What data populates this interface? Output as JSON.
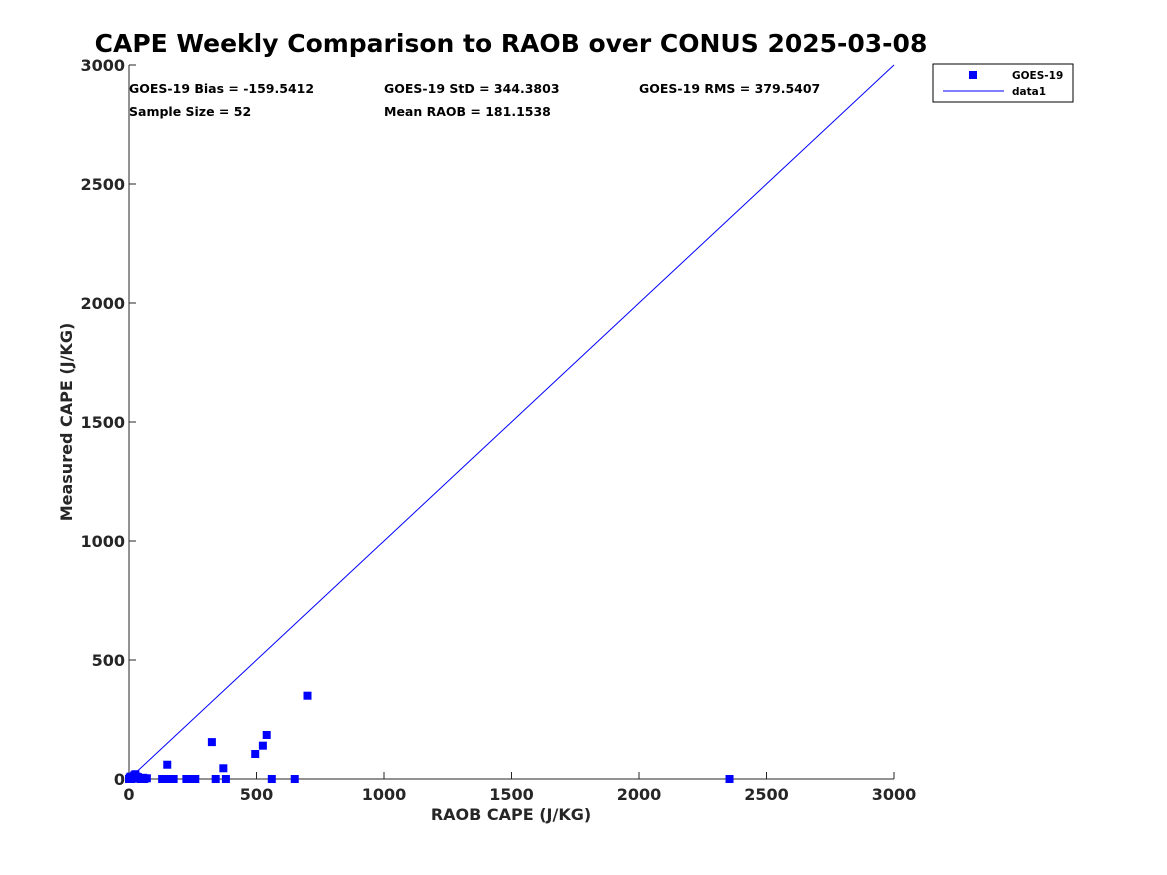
{
  "chart_data": {
    "type": "scatter",
    "title": "CAPE Weekly Comparison to RAOB over CONUS 2025-03-08",
    "xlabel": "RAOB CAPE (J/KG)",
    "ylabel": "Measured CAPE (J/KG)",
    "xlim": [
      0,
      3000
    ],
    "ylim": [
      0,
      3000
    ],
    "xticks": [
      "0",
      "500",
      "1000",
      "1500",
      "2000",
      "2500",
      "3000"
    ],
    "yticks": [
      "0",
      "500",
      "1000",
      "1500",
      "2000",
      "2500",
      "3000"
    ],
    "grid": false,
    "legend_position": "outside-top-right",
    "stats": {
      "bias": "GOES-19 Bias = -159.5412",
      "std": "GOES-19 StD = 344.3803",
      "rms": "GOES-19 RMS = 379.5407",
      "sample": "Sample Size = 52",
      "mean": "Mean RAOB = 181.1538"
    },
    "series": [
      {
        "name": "GOES-19",
        "marker": "square",
        "color": "#0000ff",
        "x": [
          0,
          3,
          6,
          10,
          15,
          20,
          25,
          30,
          35,
          45,
          55,
          60,
          70,
          130,
          145,
          150,
          160,
          175,
          225,
          250,
          260,
          325,
          340,
          370,
          380,
          495,
          525,
          540,
          560,
          650,
          700,
          2355
        ],
        "y": [
          0,
          5,
          10,
          0,
          3,
          15,
          20,
          10,
          8,
          0,
          5,
          0,
          3,
          0,
          0,
          60,
          0,
          0,
          0,
          0,
          0,
          155,
          0,
          45,
          0,
          105,
          140,
          185,
          0,
          0,
          350,
          0
        ]
      },
      {
        "name": "data1",
        "type": "line",
        "color": "#0000ff",
        "x": [
          0,
          3000
        ],
        "y": [
          0,
          3000
        ]
      }
    ]
  }
}
